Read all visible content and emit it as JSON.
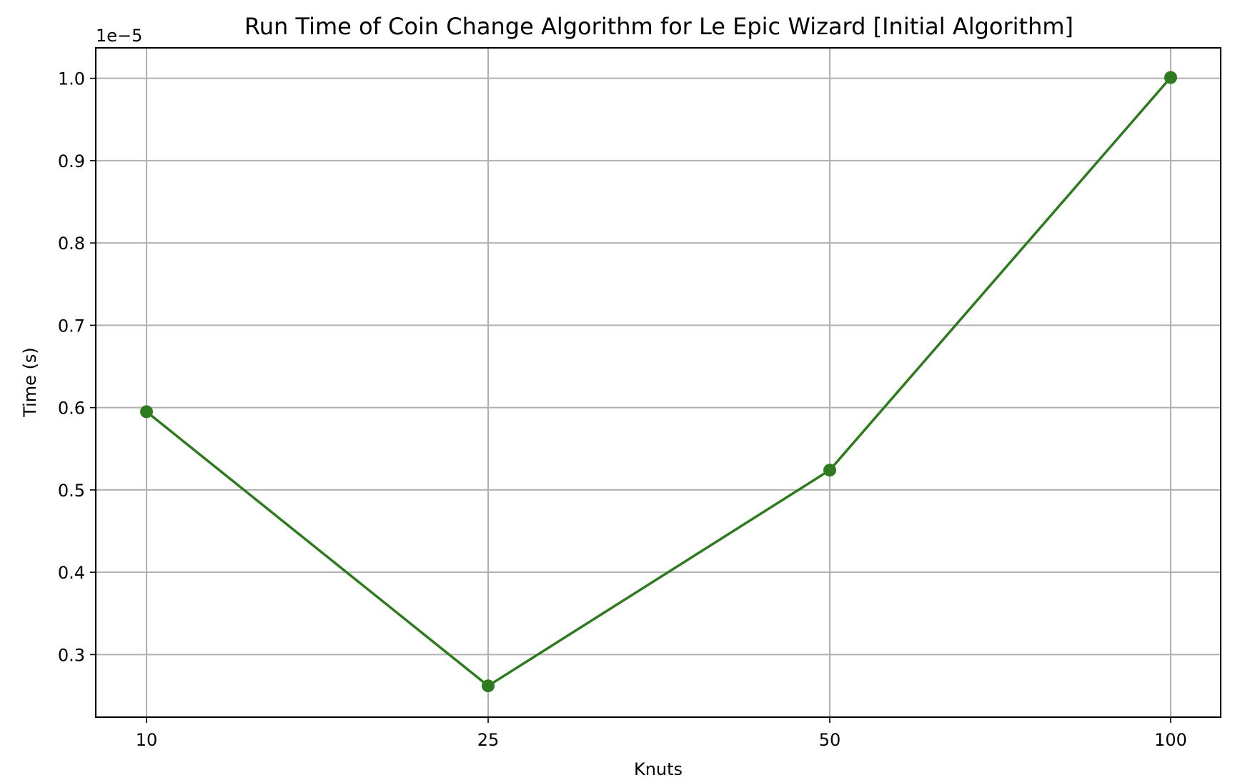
{
  "chart_data": {
    "type": "line",
    "title": "Run Time of Coin Change Algorithm for Le Epic Wizard [Initial Algorithm]",
    "xlabel": "Knuts",
    "ylabel": "Time (s)",
    "x_scale": "categorical",
    "categories": [
      "10",
      "25",
      "50",
      "100"
    ],
    "y_offset_text": "1e−5",
    "y_tick_labels": [
      "0.3",
      "0.4",
      "0.5",
      "0.6",
      "0.7",
      "0.8",
      "0.9",
      "1.0"
    ],
    "y_ticks": [
      0.3,
      0.4,
      0.5,
      0.6,
      0.7,
      0.8,
      0.9,
      1.0
    ],
    "ylim": [
      0.224,
      1.037
    ],
    "grid": true,
    "legend": "none",
    "series": [
      {
        "color": "#2e7a1f",
        "marker": "circle",
        "values": [
          0.595,
          0.262,
          0.524,
          1.001
        ]
      }
    ]
  }
}
